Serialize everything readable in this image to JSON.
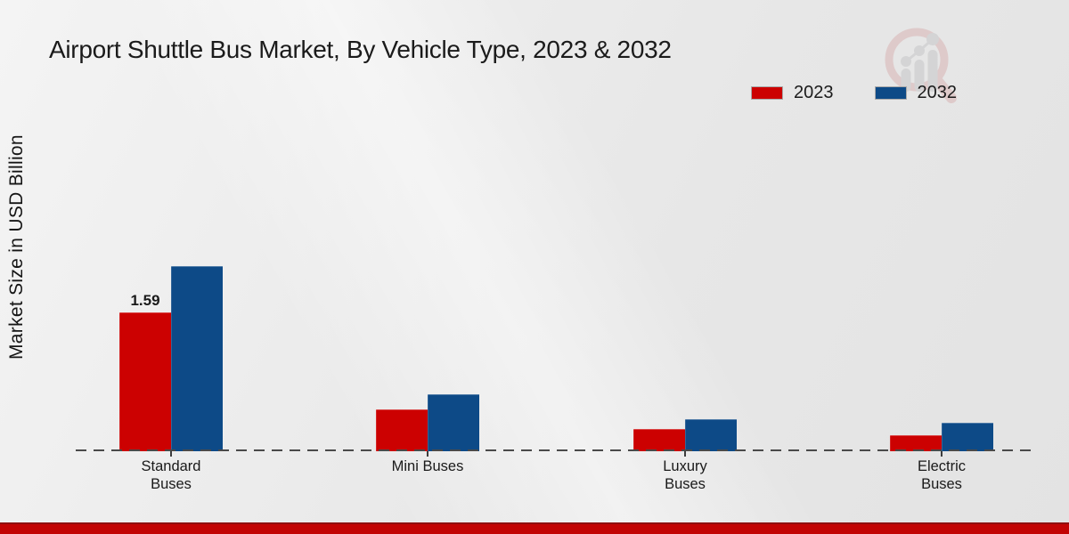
{
  "title": "Airport Shuttle Bus Market, By Vehicle Type, 2023 & 2032",
  "y_axis_label": "Market Size in USD Billion",
  "legend": [
    {
      "label": "2023",
      "color": "#cc0101"
    },
    {
      "label": "2032",
      "color": "#0d4a87"
    }
  ],
  "colors": {
    "series_2023": "#cc0101",
    "series_2032": "#0d4a87",
    "bottom_stripe": "#c20404",
    "baseline_dash": "#4a4a4a",
    "background": "#ececec"
  },
  "logo": {
    "name": "market-research-magnifier-logo"
  },
  "chart_data": {
    "type": "bar",
    "title": "Airport Shuttle Bus Market, By Vehicle Type, 2023 & 2032",
    "xlabel": "",
    "ylabel": "Market Size in USD Billion",
    "categories": [
      "Standard\nBuses",
      "Mini Buses",
      "Luxury\nBuses",
      "Electric\nBuses"
    ],
    "series": [
      {
        "name": "2023",
        "color": "#cc0101",
        "values": [
          1.59,
          0.48,
          0.25,
          0.18
        ]
      },
      {
        "name": "2032",
        "color": "#0d4a87",
        "values": [
          2.12,
          0.65,
          0.37,
          0.33
        ]
      }
    ],
    "annotations": [
      {
        "text": "1.59",
        "series": "2023",
        "category_index": 0
      }
    ],
    "ylim": [
      0,
      2.4
    ],
    "grid": false,
    "baseline_style": "dashed",
    "legend_position": "top-right"
  }
}
